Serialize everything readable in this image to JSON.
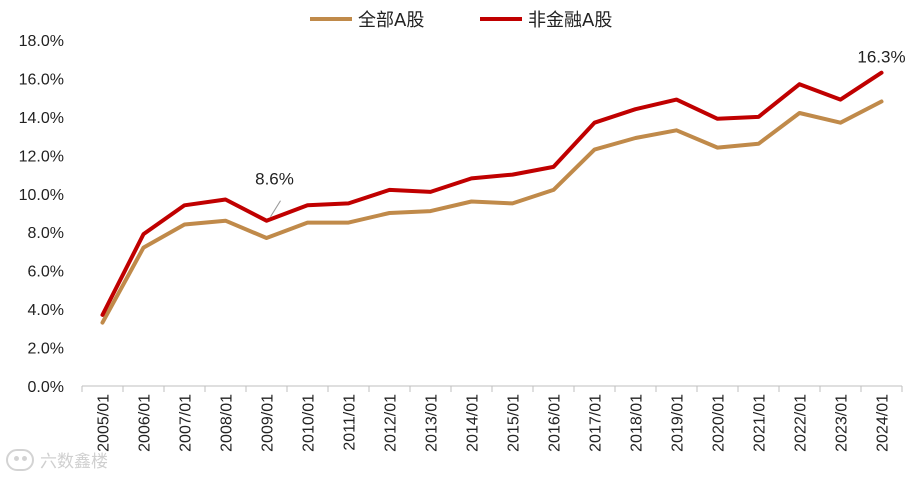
{
  "chart_data": {
    "type": "line",
    "categories": [
      "2005/01",
      "2006/01",
      "2007/01",
      "2008/01",
      "2009/01",
      "2010/01",
      "2011/01",
      "2012/01",
      "2013/01",
      "2014/01",
      "2015/01",
      "2016/01",
      "2017/01",
      "2018/01",
      "2019/01",
      "2020/01",
      "2021/01",
      "2022/01",
      "2023/01",
      "2024/01"
    ],
    "series": [
      {
        "name": "全部A股",
        "color": "#c08a4a",
        "values": [
          3.3,
          7.2,
          8.4,
          8.6,
          7.7,
          8.5,
          8.5,
          9.0,
          9.1,
          9.6,
          9.5,
          10.2,
          12.3,
          12.9,
          13.3,
          12.4,
          12.6,
          14.2,
          13.7,
          14.8
        ]
      },
      {
        "name": "非金融A股",
        "color": "#c00000",
        "values": [
          3.7,
          7.9,
          9.4,
          9.7,
          8.6,
          9.4,
          9.5,
          10.2,
          10.1,
          10.8,
          11.0,
          11.4,
          13.7,
          14.4,
          14.9,
          13.9,
          14.0,
          15.7,
          14.9,
          16.3
        ]
      }
    ],
    "ylim": [
      0,
      18
    ],
    "yticks": [
      0,
      2,
      4,
      6,
      8,
      10,
      12,
      14,
      16,
      18
    ],
    "ytick_labels": [
      "0.0%",
      "2.0%",
      "4.0%",
      "6.0%",
      "8.0%",
      "10.0%",
      "12.0%",
      "14.0%",
      "16.0%",
      "18.0%"
    ],
    "legend_position": "top-center",
    "grid": false,
    "annotations": [
      {
        "series": 1,
        "index": 4,
        "text": "8.6%"
      },
      {
        "series": 1,
        "index": 19,
        "text": "16.3%"
      }
    ]
  },
  "watermark": {
    "text": "六数鑫楼",
    "icon": "watermark-logo-icon"
  }
}
